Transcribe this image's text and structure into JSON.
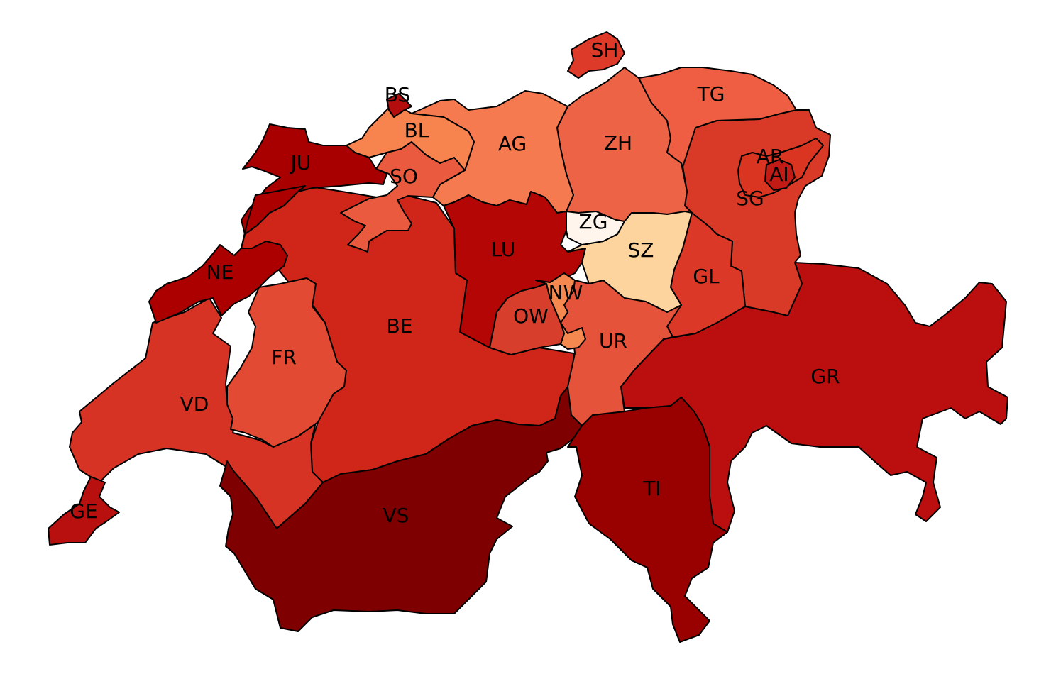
{
  "cantons": [
    {
      "code": "SH",
      "color": "#de3a2a"
    },
    {
      "code": "BS",
      "color": "#b30d0d"
    },
    {
      "code": "BL",
      "color": "#f7844f"
    },
    {
      "code": "TG",
      "color": "#ef5e42"
    },
    {
      "code": "AG",
      "color": "#f67a4f"
    },
    {
      "code": "ZH",
      "color": "#ed6346"
    },
    {
      "code": "JU",
      "color": "#a80000"
    },
    {
      "code": "SO",
      "color": "#e95a3f"
    },
    {
      "code": "AR",
      "color": "#d93520"
    },
    {
      "code": "AI",
      "color": "#c21a14"
    },
    {
      "code": "SG",
      "color": "#d83a27"
    },
    {
      "code": "ZG",
      "color": "#fff5ec"
    },
    {
      "code": "SZ",
      "color": "#fdd49e"
    },
    {
      "code": "LU",
      "color": "#b50606"
    },
    {
      "code": "NE",
      "color": "#ac0000"
    },
    {
      "code": "GL",
      "color": "#dc3828"
    },
    {
      "code": "NW",
      "color": "#f5884f"
    },
    {
      "code": "OW",
      "color": "#d83e2c"
    },
    {
      "code": "BE",
      "color": "#cf2619"
    },
    {
      "code": "UR",
      "color": "#e5533b"
    },
    {
      "code": "FR",
      "color": "#e24a33"
    },
    {
      "code": "GR",
      "color": "#bb0f0f"
    },
    {
      "code": "VD",
      "color": "#d63325"
    },
    {
      "code": "GE",
      "color": "#b80f0f"
    },
    {
      "code": "VS",
      "color": "#7f0000"
    },
    {
      "code": "TI",
      "color": "#990000"
    }
  ]
}
